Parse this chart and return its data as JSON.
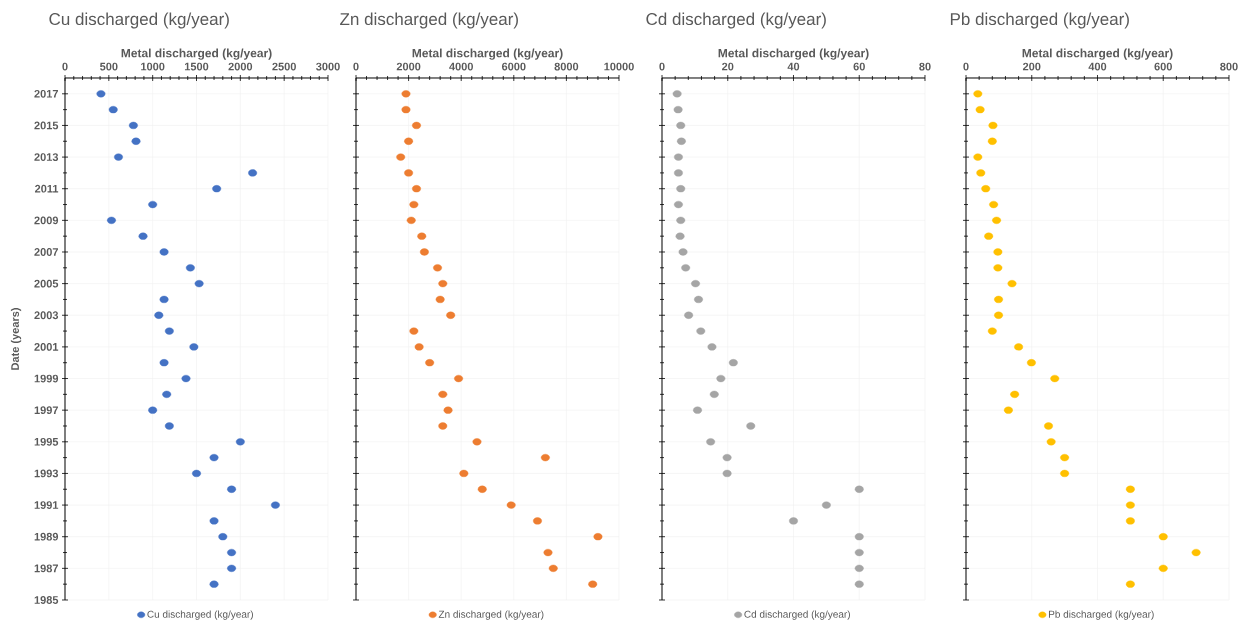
{
  "chart_data": [
    {
      "type": "scatter",
      "title": "Cu discharged (kg/year)",
      "xlabel": "Metal discharged (kg/year)",
      "ylabel": "Date (years)",
      "xlim": [
        0,
        3000
      ],
      "xticks": [
        0,
        500,
        1000,
        1500,
        2000,
        2500,
        3000
      ],
      "ylim": [
        1985,
        2018
      ],
      "yticks": [
        1985,
        1987,
        1989,
        1991,
        1993,
        1995,
        1997,
        1999,
        2001,
        2003,
        2005,
        2007,
        2009,
        2011,
        2013,
        2015,
        2017
      ],
      "grid": true,
      "legend": "bottom",
      "marker": "circle",
      "series": [
        {
          "name": "Cu discharged (kg/year)",
          "color": "#4472c4",
          "x": [
            410,
            550,
            780,
            810,
            610,
            2140,
            1730,
            1000,
            530,
            890,
            1130,
            1430,
            1530,
            1130,
            1070,
            1190,
            1470,
            1130,
            1380,
            1160,
            1000,
            1190,
            2000,
            1700,
            1500,
            1900,
            2400,
            1700,
            1800,
            1900,
            1900,
            1700
          ],
          "values": [
            2017,
            2016,
            2015,
            2014,
            2013,
            2012,
            2011,
            2010,
            2009,
            2008,
            2007,
            2006,
            2005,
            2004,
            2003,
            2002,
            2001,
            2000,
            1999,
            1998,
            1997,
            1996,
            1995,
            1994,
            1993,
            1992,
            1991,
            1990,
            1989,
            1988,
            1987,
            1986
          ]
        }
      ]
    },
    {
      "type": "scatter",
      "title": "Zn discharged (kg/year)",
      "xlabel": "Metal discharged (kg/year)",
      "xlim": [
        0,
        10000
      ],
      "xticks": [
        0,
        2000,
        4000,
        6000,
        8000,
        10000
      ],
      "ylim": [
        1985,
        2018
      ],
      "yticks": [
        1985,
        1987,
        1989,
        1991,
        1993,
        1995,
        1997,
        1999,
        2001,
        2003,
        2005,
        2007,
        2009,
        2011,
        2013,
        2015,
        2017
      ],
      "tick_labels": "x",
      "grid": true,
      "legend": "bottom",
      "marker": "circle",
      "series": [
        {
          "name": "Zn discharged (kg/year)",
          "color": "#ed7d31",
          "x": [
            1900,
            1900,
            2300,
            2000,
            1700,
            2000,
            2300,
            2200,
            2100,
            2500,
            2600,
            3100,
            3300,
            3200,
            3600,
            2200,
            2400,
            2800,
            3900,
            3300,
            3500,
            3300,
            4600,
            7200,
            4100,
            4800,
            5900,
            6900,
            9200,
            7300,
            7500,
            9000
          ],
          "values": [
            2017,
            2016,
            2015,
            2014,
            2013,
            2012,
            2011,
            2010,
            2009,
            2008,
            2007,
            2006,
            2005,
            2004,
            2003,
            2002,
            2001,
            2000,
            1999,
            1998,
            1997,
            1996,
            1995,
            1994,
            1993,
            1992,
            1991,
            1990,
            1989,
            1988,
            1987,
            1986
          ]
        }
      ]
    },
    {
      "type": "scatter",
      "title": "Cd discharged (kg/year)",
      "xlabel": "Metal discharged (kg/year)",
      "xlim": [
        0,
        80
      ],
      "xticks": [
        0,
        20,
        40,
        60,
        80
      ],
      "ylim": [
        1985,
        2018
      ],
      "yticks": [
        1985,
        1987,
        1989,
        1991,
        1993,
        1995,
        1997,
        1999,
        2001,
        2003,
        2005,
        2007,
        2009,
        2011,
        2013,
        2015,
        2017
      ],
      "tick_labels": "x",
      "grid": true,
      "legend": "bottom",
      "marker": "circle",
      "series": [
        {
          "name": "Cd discharged (kg/year)",
          "color": "#a5a5a5",
          "x": [
            4.6,
            4.9,
            5.7,
            5.9,
            5,
            5,
            5.7,
            5,
            5.7,
            5.5,
            6.4,
            7.2,
            10.2,
            11.1,
            8.1,
            11.8,
            15.2,
            21.7,
            17.9,
            15.9,
            10.8,
            27,
            14.8,
            19.8,
            19.8,
            60,
            50,
            40,
            60,
            60,
            60,
            60
          ],
          "values": [
            2017,
            2016,
            2015,
            2014,
            2013,
            2012,
            2011,
            2010,
            2009,
            2008,
            2007,
            2006,
            2005,
            2004,
            2003,
            2002,
            2001,
            2000,
            1999,
            1998,
            1997,
            1996,
            1995,
            1994,
            1993,
            1992,
            1991,
            1990,
            1989,
            1988,
            1987,
            1986
          ]
        }
      ]
    },
    {
      "type": "scatter",
      "title": "Pb discharged (kg/year)",
      "xlabel": "Metal discharged (kg/year)",
      "xlim": [
        0,
        800
      ],
      "xticks": [
        0,
        200,
        400,
        600,
        800
      ],
      "ylim": [
        1985,
        2018
      ],
      "yticks": [
        1985,
        1987,
        1989,
        1991,
        1993,
        1995,
        1997,
        1999,
        2001,
        2003,
        2005,
        2007,
        2009,
        2011,
        2013,
        2015,
        2017
      ],
      "tick_labels": "x",
      "grid": true,
      "legend": "bottom",
      "marker": "circle",
      "series": [
        {
          "name": "Pb discharged (kg/year)",
          "color": "#ffc000",
          "x": [
            36,
            43,
            82,
            80,
            36,
            45,
            60,
            84,
            93,
            69,
            97,
            97,
            140,
            99,
            99,
            80,
            160,
            199,
            270,
            148,
            129,
            251,
            259,
            300,
            300,
            500,
            500,
            500,
            600,
            700,
            600,
            500
          ],
          "values": [
            2017,
            2016,
            2015,
            2014,
            2013,
            2012,
            2011,
            2010,
            2009,
            2008,
            2007,
            2006,
            2005,
            2004,
            2003,
            2002,
            2001,
            2000,
            1999,
            1998,
            1997,
            1996,
            1995,
            1994,
            1993,
            1992,
            1991,
            1990,
            1989,
            1988,
            1987,
            1986
          ]
        }
      ]
    }
  ]
}
